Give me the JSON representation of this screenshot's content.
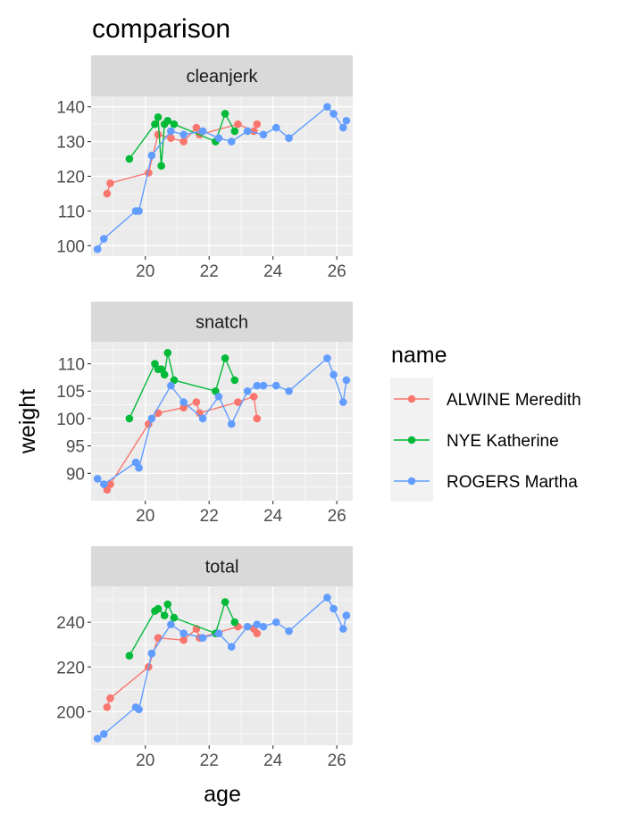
{
  "chart_data": {
    "type": "line",
    "title": "comparison",
    "xlabel": "age",
    "ylabel": "weight",
    "legend": {
      "title": "name",
      "placement": "right"
    },
    "x_ticks": [
      20,
      22,
      24,
      26
    ],
    "xlim": [
      18.3,
      26.5
    ],
    "grid": true,
    "series_styles": [
      {
        "name": "ALWINE Meredith",
        "color": "#F8766D"
      },
      {
        "name": "NYE Katherine",
        "color": "#00BA38"
      },
      {
        "name": "ROGERS Martha",
        "color": "#619CFF"
      }
    ],
    "facets": [
      {
        "strip": "cleanjerk",
        "ylim": [
          97,
          143
        ],
        "y_ticks": [
          100,
          110,
          120,
          130,
          140
        ],
        "series": [
          {
            "name": "ALWINE Meredith",
            "points": [
              [
                18.8,
                115
              ],
              [
                18.9,
                118
              ],
              [
                20.1,
                121
              ],
              [
                20.4,
                132
              ],
              [
                20.8,
                131
              ],
              [
                21.2,
                130
              ],
              [
                21.6,
                134
              ],
              [
                21.7,
                132
              ],
              [
                22.9,
                135
              ],
              [
                23.4,
                133
              ],
              [
                23.5,
                135
              ]
            ]
          },
          {
            "name": "NYE Katherine",
            "points": [
              [
                19.5,
                125
              ],
              [
                20.3,
                135
              ],
              [
                20.4,
                137
              ],
              [
                20.5,
                123
              ],
              [
                20.6,
                135
              ],
              [
                20.7,
                136
              ],
              [
                20.9,
                135
              ],
              [
                22.2,
                130
              ],
              [
                22.5,
                138
              ],
              [
                22.8,
                133
              ]
            ]
          },
          {
            "name": "ROGERS Martha",
            "points": [
              [
                18.5,
                99
              ],
              [
                18.7,
                102
              ],
              [
                19.7,
                110
              ],
              [
                19.8,
                110
              ],
              [
                20.2,
                126
              ],
              [
                20.8,
                133
              ],
              [
                21.2,
                132
              ],
              [
                21.8,
                133
              ],
              [
                22.3,
                131
              ],
              [
                22.7,
                130
              ],
              [
                23.2,
                133
              ],
              [
                23.7,
                132
              ],
              [
                24.1,
                134
              ],
              [
                24.5,
                131
              ],
              [
                25.7,
                140
              ],
              [
                25.9,
                138
              ],
              [
                26.2,
                134
              ],
              [
                26.3,
                136
              ]
            ]
          }
        ]
      },
      {
        "strip": "snatch",
        "ylim": [
          85,
          114
        ],
        "y_ticks": [
          90,
          95,
          100,
          105,
          110
        ],
        "series": [
          {
            "name": "ALWINE Meredith",
            "points": [
              [
                18.8,
                87
              ],
              [
                18.9,
                88
              ],
              [
                20.1,
                99
              ],
              [
                20.4,
                101
              ],
              [
                21.2,
                102
              ],
              [
                21.6,
                103
              ],
              [
                21.7,
                101
              ],
              [
                22.9,
                103
              ],
              [
                23.4,
                104
              ],
              [
                23.5,
                100
              ]
            ]
          },
          {
            "name": "NYE Katherine",
            "points": [
              [
                19.5,
                100
              ],
              [
                20.3,
                110
              ],
              [
                20.4,
                109
              ],
              [
                20.5,
                109
              ],
              [
                20.6,
                108
              ],
              [
                20.7,
                112
              ],
              [
                20.9,
                107
              ],
              [
                22.2,
                105
              ],
              [
                22.5,
                111
              ],
              [
                22.8,
                107
              ]
            ]
          },
          {
            "name": "ROGERS Martha",
            "points": [
              [
                18.5,
                89
              ],
              [
                18.7,
                88
              ],
              [
                19.7,
                92
              ],
              [
                19.8,
                91
              ],
              [
                20.2,
                100
              ],
              [
                20.8,
                106
              ],
              [
                21.2,
                103
              ],
              [
                21.8,
                100
              ],
              [
                22.3,
                104
              ],
              [
                22.7,
                99
              ],
              [
                23.2,
                105
              ],
              [
                23.5,
                106
              ],
              [
                23.7,
                106
              ],
              [
                24.1,
                106
              ],
              [
                24.5,
                105
              ],
              [
                25.7,
                111
              ],
              [
                25.9,
                108
              ],
              [
                26.2,
                103
              ],
              [
                26.3,
                107
              ]
            ]
          }
        ]
      },
      {
        "strip": "total",
        "ylim": [
          185,
          256
        ],
        "y_ticks": [
          200,
          220,
          240
        ],
        "series": [
          {
            "name": "ALWINE Meredith",
            "points": [
              [
                18.8,
                202
              ],
              [
                18.9,
                206
              ],
              [
                20.1,
                220
              ],
              [
                20.4,
                233
              ],
              [
                21.2,
                232
              ],
              [
                21.6,
                237
              ],
              [
                21.7,
                233
              ],
              [
                22.9,
                238
              ],
              [
                23.4,
                237
              ],
              [
                23.5,
                235
              ]
            ]
          },
          {
            "name": "NYE Katherine",
            "points": [
              [
                19.5,
                225
              ],
              [
                20.3,
                245
              ],
              [
                20.4,
                246
              ],
              [
                20.6,
                243
              ],
              [
                20.7,
                248
              ],
              [
                20.9,
                242
              ],
              [
                22.2,
                235
              ],
              [
                22.5,
                249
              ],
              [
                22.8,
                240
              ]
            ]
          },
          {
            "name": "ROGERS Martha",
            "points": [
              [
                18.5,
                188
              ],
              [
                18.7,
                190
              ],
              [
                19.7,
                202
              ],
              [
                19.8,
                201
              ],
              [
                20.2,
                226
              ],
              [
                20.8,
                239
              ],
              [
                21.2,
                235
              ],
              [
                21.8,
                233
              ],
              [
                22.3,
                235
              ],
              [
                22.7,
                229
              ],
              [
                23.2,
                238
              ],
              [
                23.5,
                239
              ],
              [
                23.7,
                238
              ],
              [
                24.1,
                240
              ],
              [
                24.5,
                236
              ],
              [
                25.7,
                251
              ],
              [
                25.9,
                246
              ],
              [
                26.2,
                237
              ],
              [
                26.3,
                243
              ]
            ]
          }
        ]
      }
    ]
  }
}
